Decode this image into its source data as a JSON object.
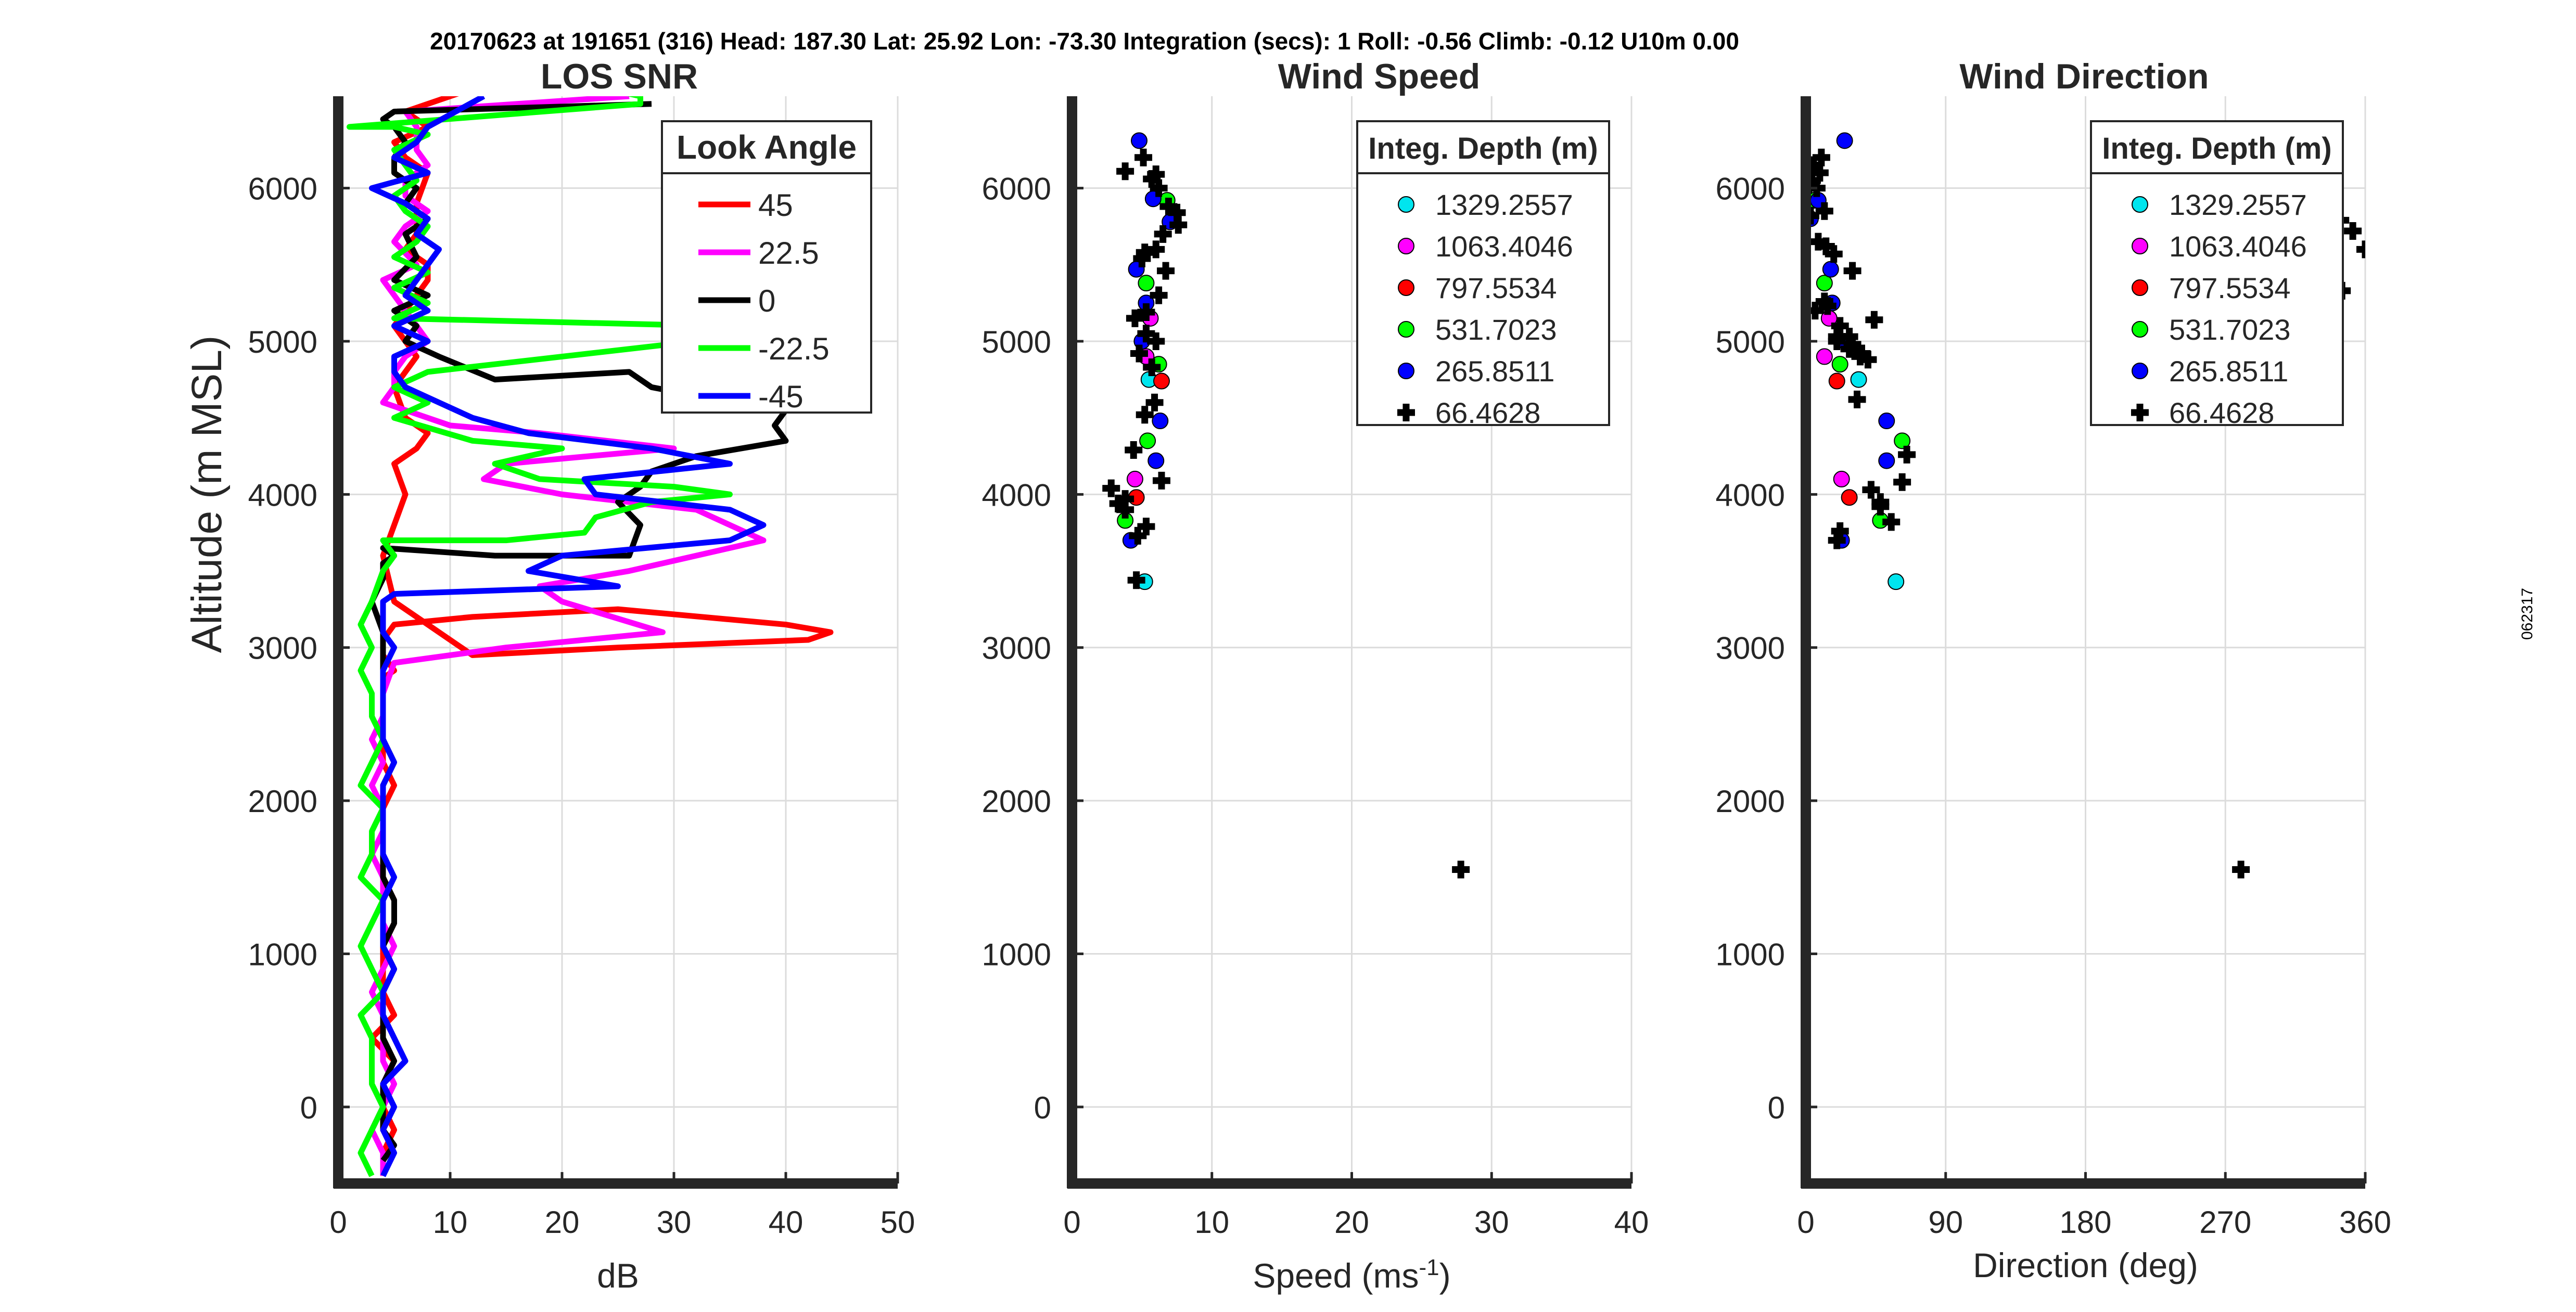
{
  "header": "20170623 at 191651 (316)  Head: 187.30  Lat: 25.92  Lon: -73.30  Integration (secs): 1  Roll: -0.56  Climb: -0.12  U10m 0.00",
  "side_code": "062317",
  "colors": {
    "45": "#ff0000",
    "22.5": "#ff00ff",
    "0": "#000000",
    "-22.5": "#00ff00",
    "-45": "#0000ff",
    "cyan": "#00e5ee",
    "magenta": "#ff00ff",
    "red": "#ff0000",
    "green": "#00ff00",
    "blue": "#0000ff",
    "black": "#000000",
    "grid": "#dcdcdc",
    "axis": "#262626"
  },
  "chart_data": [
    {
      "type": "line",
      "title": "LOS SNR",
      "xlabel": "dB",
      "ylabel": "Altitude (m MSL)",
      "xlim": [
        0,
        50
      ],
      "ylim": [
        -500,
        6600
      ],
      "xticks": [
        "0",
        "10",
        "20",
        "30",
        "40",
        "50"
      ],
      "yticks": [
        "0",
        "1000",
        "2000",
        "3000",
        "4000",
        "5000",
        "6000"
      ],
      "legend_title": "Look Angle",
      "legend_position": "top-right",
      "series": [
        {
          "name": "45",
          "color_key": "45",
          "x": [
            4,
            4,
            5,
            4,
            4,
            5,
            3,
            5,
            4,
            4,
            4,
            5,
            5,
            4,
            4,
            4,
            4,
            5,
            4,
            4,
            4,
            4,
            4,
            5,
            4,
            4,
            5,
            12,
            25,
            40,
            44,
            42,
            25,
            12,
            5,
            4,
            5,
            6,
            5,
            7,
            8,
            6,
            5,
            7,
            6,
            5,
            6,
            8,
            8,
            6,
            7,
            7,
            7,
            8,
            6,
            5,
            8,
            6,
            12
          ],
          "y": [
            -450,
            -300,
            -150,
            0,
            150,
            300,
            450,
            600,
            750,
            900,
            1050,
            1200,
            1350,
            1500,
            1650,
            1800,
            1950,
            2100,
            2250,
            2400,
            2550,
            2700,
            2800,
            2850,
            2950,
            3050,
            3150,
            3200,
            3250,
            3150,
            3100,
            3050,
            3000,
            2950,
            3300,
            3600,
            3800,
            4000,
            4200,
            4300,
            4400,
            4500,
            4700,
            4900,
            5000,
            5100,
            5200,
            5400,
            5500,
            5600,
            5700,
            5800,
            5900,
            6100,
            6200,
            6300,
            6400,
            6500,
            6650
          ]
        },
        {
          "name": "22.5",
          "color_key": "22.5",
          "x": [
            4,
            4,
            3,
            4,
            5,
            4,
            4,
            4,
            3,
            4,
            5,
            4,
            4,
            4,
            3,
            4,
            4,
            3,
            4,
            3,
            4,
            4,
            5,
            15,
            29,
            20,
            18,
            26,
            38,
            35,
            32,
            20,
            13,
            15,
            30,
            24,
            18,
            10,
            8,
            4,
            5,
            5,
            6,
            8,
            7,
            6,
            5,
            4,
            7,
            5,
            6,
            8,
            6,
            6,
            8,
            7,
            7,
            6,
            26
          ],
          "y": [
            -450,
            -300,
            -150,
            0,
            150,
            300,
            450,
            600,
            750,
            900,
            1050,
            1200,
            1350,
            1500,
            1650,
            1800,
            1950,
            2100,
            2250,
            2400,
            2550,
            2700,
            2900,
            3000,
            3100,
            3300,
            3400,
            3500,
            3700,
            3800,
            3900,
            4000,
            4100,
            4200,
            4300,
            4350,
            4400,
            4450,
            4500,
            4600,
            4700,
            4800,
            4900,
            5000,
            5100,
            5200,
            5300,
            5400,
            5500,
            5650,
            5750,
            5850,
            5950,
            6050,
            6150,
            6250,
            6400,
            6500,
            6600
          ]
        },
        {
          "name": "0",
          "color_key": "0",
          "x": [
            4,
            5,
            4,
            4,
            4,
            5,
            4,
            4,
            4,
            5,
            4,
            5,
            5,
            4,
            4,
            4,
            4,
            4,
            5,
            4,
            4,
            4,
            4,
            4,
            4,
            3,
            4,
            4,
            5,
            4,
            14,
            26,
            27,
            25,
            27,
            28,
            32,
            40,
            39,
            40,
            35,
            28,
            26,
            14,
            9,
            6,
            7,
            5,
            8,
            5,
            7,
            6,
            8,
            6,
            7,
            5,
            5,
            6,
            5,
            4,
            5,
            28
          ],
          "y": [
            -350,
            -250,
            -150,
            0,
            150,
            300,
            450,
            600,
            750,
            900,
            1050,
            1200,
            1350,
            1500,
            1650,
            1800,
            1950,
            2100,
            2250,
            2400,
            2550,
            2700,
            2850,
            3000,
            3100,
            3300,
            3450,
            3550,
            3600,
            3650,
            3600,
            3600,
            3800,
            3950,
            4050,
            4150,
            4250,
            4350,
            4450,
            4550,
            4600,
            4700,
            4800,
            4750,
            4900,
            5000,
            5100,
            5200,
            5300,
            5400,
            5550,
            5700,
            5800,
            5900,
            6000,
            6100,
            6200,
            6300,
            6400,
            6450,
            6500,
            6550
          ]
        },
        {
          "name": "-22.5",
          "color_key": "-22.5",
          "x": [
            3,
            2,
            3,
            4,
            3,
            3,
            3,
            2,
            4,
            3,
            2,
            3,
            4,
            2,
            3,
            3,
            4,
            2,
            3,
            4,
            3,
            3,
            2,
            3,
            2,
            3,
            4,
            5,
            4,
            15,
            22,
            23,
            28,
            35,
            30,
            18,
            14,
            20,
            12,
            5,
            8,
            5,
            8,
            20,
            32,
            34,
            5,
            8,
            5,
            8,
            5,
            7,
            8,
            6,
            5,
            7,
            6,
            5,
            8,
            5,
            1,
            27,
            27,
            24
          ],
          "y": [
            -450,
            -300,
            -150,
            0,
            150,
            300,
            450,
            600,
            750,
            900,
            1050,
            1200,
            1350,
            1500,
            1650,
            1800,
            1950,
            2100,
            2250,
            2400,
            2550,
            2700,
            2850,
            3000,
            3150,
            3300,
            3500,
            3600,
            3700,
            3700,
            3750,
            3850,
            3950,
            4000,
            4050,
            4100,
            4200,
            4300,
            4350,
            4500,
            4600,
            4700,
            4800,
            4900,
            5000,
            5100,
            5150,
            5250,
            5350,
            5450,
            5550,
            5650,
            5750,
            5850,
            5950,
            6050,
            6150,
            6250,
            6350,
            6400,
            6400,
            6550,
            6600,
            6650
          ]
        },
        {
          "name": "-45",
          "color_key": "-45",
          "x": [
            4,
            5,
            4,
            5,
            4,
            6,
            5,
            4,
            4,
            5,
            4,
            4,
            4,
            5,
            4,
            4,
            4,
            4,
            5,
            4,
            4,
            4,
            4,
            5,
            4,
            4,
            4,
            5,
            25,
            17,
            20,
            35,
            38,
            35,
            23,
            22,
            35,
            28,
            17,
            12,
            9,
            6,
            5,
            5,
            8,
            5,
            8,
            6,
            7,
            8,
            9,
            7,
            8,
            6,
            3,
            8,
            5,
            7,
            8,
            13
          ],
          "y": [
            -450,
            -300,
            -150,
            0,
            150,
            300,
            450,
            600,
            750,
            900,
            1050,
            1200,
            1350,
            1500,
            1650,
            1800,
            1950,
            2100,
            2250,
            2400,
            2550,
            2700,
            2850,
            3000,
            3100,
            3200,
            3300,
            3350,
            3400,
            3500,
            3600,
            3700,
            3800,
            3900,
            4000,
            4100,
            4200,
            4300,
            4400,
            4500,
            4600,
            4700,
            4800,
            4900,
            5000,
            5100,
            5200,
            5300,
            5400,
            5500,
            5600,
            5700,
            5800,
            5900,
            6000,
            6100,
            6200,
            6300,
            6400,
            6600
          ]
        }
      ]
    },
    {
      "type": "scatter",
      "title": "Wind Speed",
      "xlabel": "Speed (ms",
      "xlabel_sup": "-1",
      "xlabel_end": ")",
      "ylabel": "",
      "xlim": [
        0,
        40
      ],
      "ylim": [
        -500,
        6600
      ],
      "xticks": [
        "0",
        "10",
        "20",
        "30",
        "40"
      ],
      "yticks": [
        "0",
        "1000",
        "2000",
        "3000",
        "4000",
        "5000",
        "6000"
      ],
      "legend_title": "Integ. Depth (m)",
      "legend_position": "top-right",
      "series": [
        {
          "name": "1329.2557",
          "color_key": "cyan",
          "marker": "circle",
          "x": [
            5.2,
            5.5
          ],
          "y": [
            3430,
            4750
          ]
        },
        {
          "name": "1063.4046",
          "color_key": "magenta",
          "marker": "circle",
          "x": [
            4.5,
            5.3,
            5.6
          ],
          "y": [
            4100,
            4900,
            5150
          ]
        },
        {
          "name": "797.5534",
          "color_key": "red",
          "marker": "circle",
          "x": [
            4.6,
            6.4
          ],
          "y": [
            3980,
            4740
          ]
        },
        {
          "name": "531.7023",
          "color_key": "green",
          "marker": "circle",
          "x": [
            3.8,
            5.4,
            6.2,
            5.3,
            6.8
          ],
          "y": [
            3830,
            4350,
            4850,
            5380,
            5920
          ]
        },
        {
          "name": "265.8511",
          "color_key": "blue",
          "marker": "circle",
          "x": [
            4.2,
            6.0,
            6.3,
            5.0,
            5.3,
            4.6,
            5.8,
            7.0,
            4.8
          ],
          "y": [
            3700,
            4220,
            4480,
            5000,
            5250,
            5470,
            5930,
            5780,
            6310
          ]
        },
        {
          "name": "66.4628",
          "color_key": "black",
          "marker": "plus",
          "x": [
            27.8,
            4.6,
            5.3,
            4.7,
            3.8,
            2.8,
            3.3,
            3.8,
            4.4,
            5.2,
            6.4,
            4.5,
            5.9,
            5.7,
            4.8,
            5.3,
            6.0,
            5.3,
            6.2,
            5.2,
            6.7,
            6.0,
            5.0,
            6.5,
            7.6,
            7.5,
            6.9,
            6.2,
            5.7,
            6.0,
            5.1,
            3.8
          ],
          "y": [
            1550,
            3440,
            3790,
            3730,
            3900,
            4040,
            3940,
            3970,
            4290,
            4520,
            4090,
            5150,
            4600,
            4830,
            4920,
            5050,
            5000,
            5190,
            5300,
            5580,
            5460,
            5600,
            5540,
            5700,
            5760,
            5840,
            5880,
            6000,
            6060,
            6090,
            6200,
            6110
          ]
        }
      ]
    },
    {
      "type": "scatter",
      "title": "Wind Direction",
      "xlabel": "Direction (deg)",
      "ylabel": "",
      "xlim": [
        0,
        360
      ],
      "ylim": [
        -500,
        6600
      ],
      "xticks": [
        "0",
        "90",
        "180",
        "270",
        "360"
      ],
      "yticks": [
        "0",
        "1000",
        "2000",
        "3000",
        "4000",
        "5000",
        "6000"
      ],
      "legend_title": "Integ. Depth (m)",
      "legend_position": "top-right",
      "series": [
        {
          "name": "1329.2557",
          "color_key": "cyan",
          "marker": "circle",
          "x": [
            58,
            34
          ],
          "y": [
            3430,
            4750
          ]
        },
        {
          "name": "1063.4046",
          "color_key": "magenta",
          "marker": "circle",
          "x": [
            23,
            12,
            15
          ],
          "y": [
            4100,
            4900,
            5150
          ]
        },
        {
          "name": "797.5534",
          "color_key": "red",
          "marker": "circle",
          "x": [
            28,
            20
          ],
          "y": [
            3980,
            4740
          ]
        },
        {
          "name": "531.7023",
          "color_key": "green",
          "marker": "circle",
          "x": [
            48,
            62,
            22,
            12,
            5
          ],
          "y": [
            3830,
            4350,
            4850,
            5380,
            5920
          ]
        },
        {
          "name": "265.8511",
          "color_key": "blue",
          "marker": "circle",
          "x": [
            23,
            52,
            52,
            25,
            17,
            16,
            3,
            8,
            25
          ],
          "y": [
            3700,
            4220,
            4480,
            5000,
            5250,
            5470,
            5800,
            5920,
            6310
          ]
        },
        {
          "name": "66.4628",
          "color_key": "black",
          "marker": "plus",
          "x": [
            280,
            360,
            352,
            344,
            345,
            33,
            44,
            20,
            22,
            36,
            42,
            48,
            55,
            48,
            62,
            65,
            40,
            30,
            28,
            20,
            30,
            12,
            6,
            18,
            13,
            8,
            3,
            7,
            12,
            4,
            9,
            28,
            20,
            35,
            22,
            14,
            5,
            10,
            2
          ],
          "y": [
            1550,
            5600,
            5720,
            5790,
            5330,
            4620,
            5140,
            3700,
            3760,
            4920,
            4030,
            3920,
            3820,
            3950,
            4080,
            4260,
            4880,
            4980,
            5030,
            5030,
            5460,
            5260,
            5200,
            5570,
            5620,
            5650,
            5820,
            6000,
            5850,
            6050,
            6100,
            4950,
            5000,
            4900,
            5100,
            5230,
            6150,
            6200,
            6020
          ]
        }
      ]
    }
  ]
}
